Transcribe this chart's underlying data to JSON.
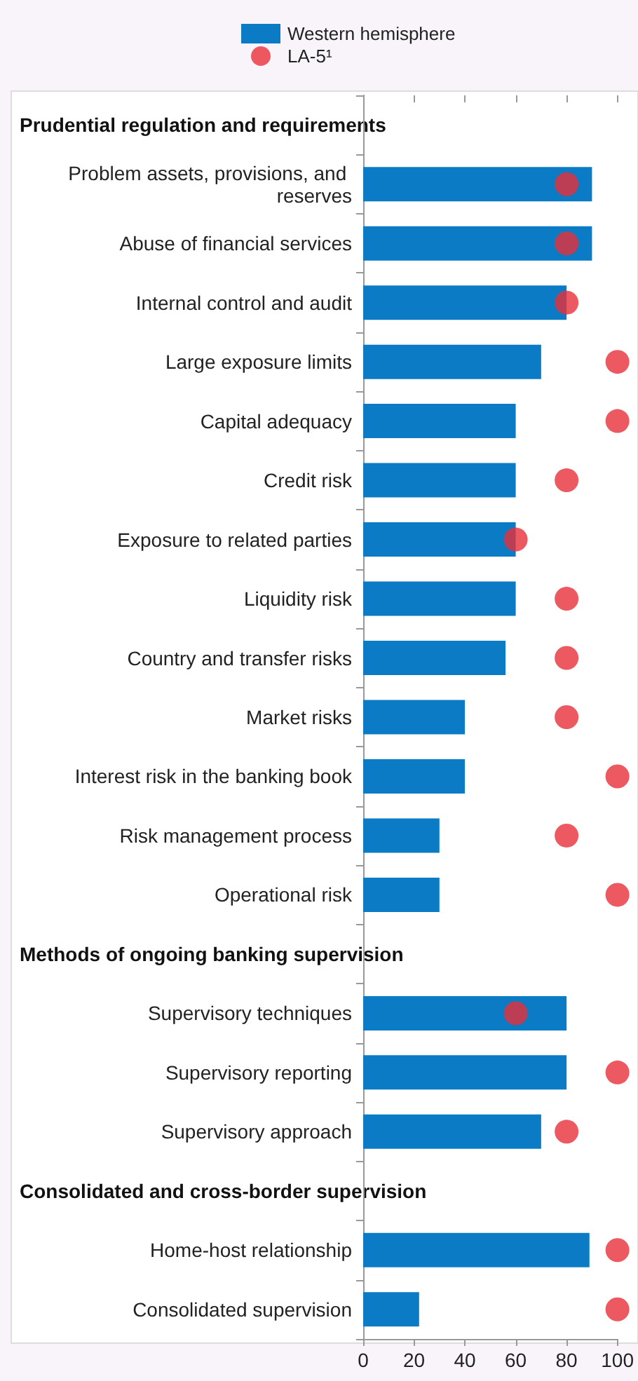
{
  "chart_data": {
    "type": "bar",
    "orientation": "horizontal",
    "legend": "top",
    "categories": [
      null,
      "Problem assets, provisions, and reserves",
      "Abuse of financial services",
      "Internal control and audit",
      "Large exposure limits",
      "Capital adequacy",
      "Credit risk",
      "Exposure to related parties",
      "Liquidity risk",
      "Country and transfer risks",
      "Market risks",
      "Interest risk in the banking book",
      "Risk management process",
      "Operational risk",
      null,
      "Supervisory techniques",
      "Supervisory reporting",
      "Supervisory approach",
      null,
      "Home-host relationship",
      "Consolidated supervision"
    ],
    "annotations": [
      "Prudential regulation and requirements",
      "Methods of ongoing banking supervision",
      "Consolidated and cross-border supervision"
    ],
    "series": [
      {
        "name": "Western hemisphere",
        "color": "#0a7bc4",
        "values": [
          null,
          90,
          90,
          80,
          70,
          60,
          60,
          60,
          60,
          56,
          40,
          40,
          30,
          30,
          null,
          80,
          80,
          70,
          null,
          89,
          22
        ]
      },
      {
        "name": "LA-5¹",
        "type": "scatter",
        "color": "#e8303a",
        "values": [
          null,
          80,
          80,
          80,
          100,
          100,
          80,
          60,
          80,
          80,
          80,
          100,
          80,
          100,
          null,
          60,
          100,
          80,
          null,
          100,
          100
        ]
      }
    ],
    "marker": "circle",
    "xlim": [
      0,
      100
    ],
    "xticks": [
      0,
      20,
      40,
      60,
      80,
      100
    ]
  }
}
